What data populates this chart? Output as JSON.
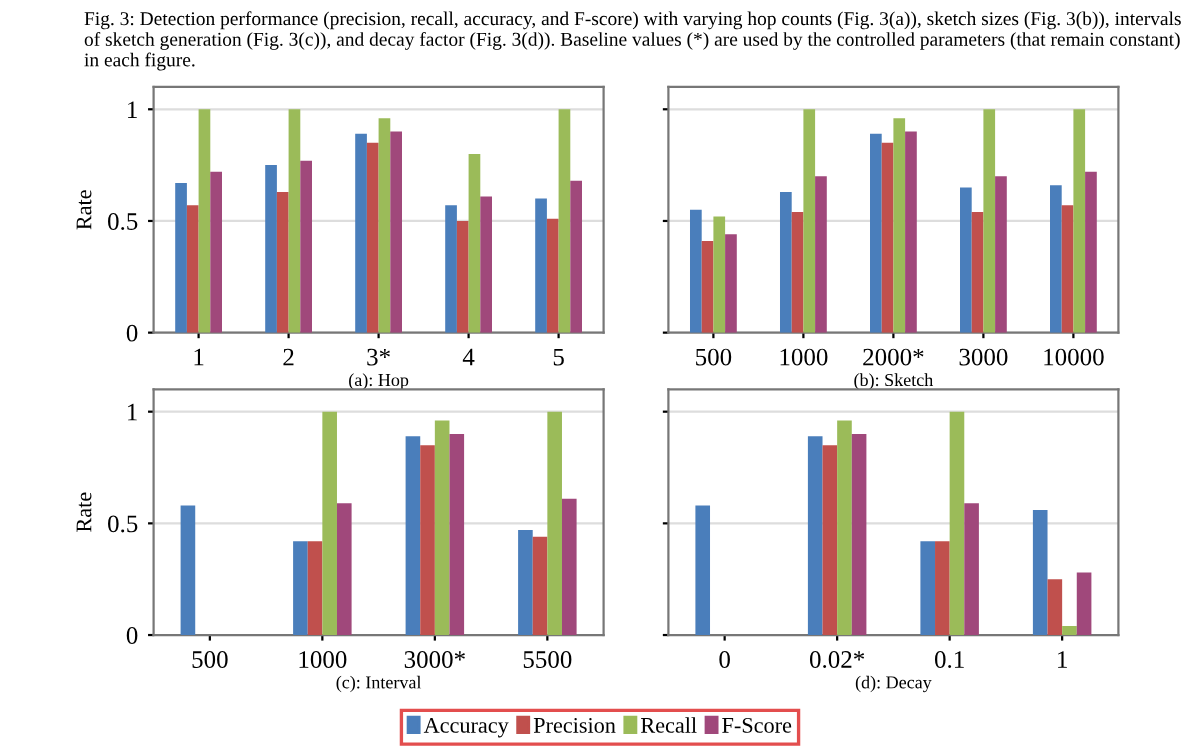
{
  "chart_data": [
    {
      "type": "bar",
      "title": "Fig. 3: Detection performance (precision, recall, accuracy, and F-score) with varying hop counts (Fig. 3(a)), sketch sizes (Fig. 3(b)), intervals of sketch generation (Fig. 3(c)), and decay factor (Fig. 3(d)). Baseline values (*) are used by the controlled parameters (that remain constant) in each figure.",
      "xlabel": "(a): Hop",
      "ylabel": "Rate",
      "categories": [
        "1",
        "2",
        "3*",
        "4",
        "5"
      ],
      "ylim": [
        0,
        1.1
      ],
      "yticks": [
        0,
        0.5,
        1
      ],
      "grid": "y",
      "legend": "bottom",
      "series": [
        {
          "name": "Accuracy",
          "color": "#4a7ebb",
          "values": [
            0.67,
            0.75,
            0.89,
            0.57,
            0.6
          ]
        },
        {
          "name": "Precision",
          "color": "#c0504d",
          "values": [
            0.57,
            0.63,
            0.85,
            0.5,
            0.51
          ]
        },
        {
          "name": "Recall",
          "color": "#9bbb59",
          "values": [
            1.0,
            1.0,
            0.96,
            0.8,
            1.0
          ]
        },
        {
          "name": "F-Score",
          "color": "#a0487b",
          "values": [
            0.72,
            0.77,
            0.9,
            0.61,
            0.68
          ]
        }
      ]
    },
    {
      "type": "bar",
      "xlabel": "(b): Sketch",
      "categories": [
        "500",
        "1000",
        "2000*",
        "3000",
        "10000"
      ],
      "ylim": [
        0,
        1.1
      ],
      "yticks": [
        0,
        0.5,
        1
      ],
      "grid": "y",
      "tick_labels": "x",
      "series": [
        {
          "color": "#4a7ebb",
          "values": [
            0.55,
            0.63,
            0.89,
            0.65,
            0.66
          ]
        },
        {
          "color": "#c0504d",
          "values": [
            0.41,
            0.54,
            0.85,
            0.54,
            0.57
          ]
        },
        {
          "color": "#9bbb59",
          "values": [
            0.52,
            1.0,
            0.96,
            1.0,
            1.0
          ]
        },
        {
          "color": "#a0487b",
          "values": [
            0.44,
            0.7,
            0.9,
            0.7,
            0.72
          ]
        }
      ]
    },
    {
      "type": "bar",
      "xlabel": "(c): Interval",
      "ylabel": "Rate",
      "categories": [
        "500",
        "1000",
        "3000*",
        "5500"
      ],
      "ylim": [
        0,
        1.1
      ],
      "yticks": [
        0,
        0.5,
        1
      ],
      "grid": "y",
      "series": [
        {
          "color": "#4a7ebb",
          "values": [
            0.58,
            0.42,
            0.89,
            0.47
          ]
        },
        {
          "color": "#c0504d",
          "values": [
            0,
            0.42,
            0.85,
            0.44
          ]
        },
        {
          "color": "#9bbb59",
          "values": [
            0,
            1.0,
            0.96,
            1.0
          ]
        },
        {
          "color": "#a0487b",
          "values": [
            0,
            0.59,
            0.9,
            0.61
          ]
        }
      ]
    },
    {
      "type": "bar",
      "xlabel": "(d): Decay",
      "categories": [
        "0",
        "0.02*",
        "0.1",
        "1"
      ],
      "ylim": [
        0,
        1.1
      ],
      "yticks": [
        0,
        0.5,
        1
      ],
      "grid": "y",
      "tick_labels": "x",
      "series": [
        {
          "color": "#4a7ebb",
          "values": [
            0.58,
            0.89,
            0.42,
            0.56
          ]
        },
        {
          "color": "#c0504d",
          "values": [
            0,
            0.85,
            0.42,
            0.25
          ]
        },
        {
          "color": "#9bbb59",
          "values": [
            0,
            0.96,
            1.0,
            0.04
          ]
        },
        {
          "color": "#a0487b",
          "values": [
            0,
            0.9,
            0.59,
            0.28
          ]
        }
      ]
    }
  ]
}
